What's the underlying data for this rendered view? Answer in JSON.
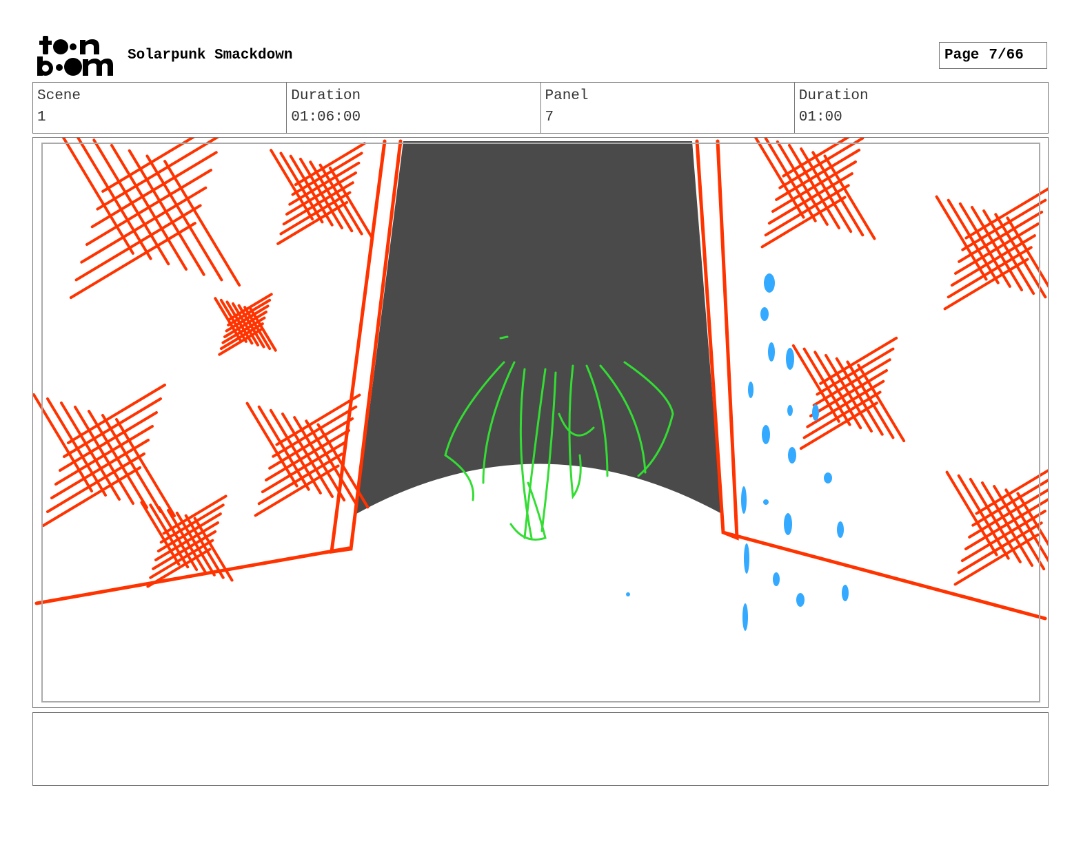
{
  "header": {
    "logo_text": "toon boom",
    "project_title": "Solarpunk Smackdown",
    "page_label": "Page",
    "page_value": "7/66"
  },
  "info": [
    {
      "label": "Scene",
      "value": "1"
    },
    {
      "label": "Duration",
      "value": "01:06:00"
    },
    {
      "label": "Panel",
      "value": "7"
    },
    {
      "label": "Duration",
      "value": "01:00"
    }
  ],
  "notes": {
    "text": ""
  },
  "colors": {
    "red": "#ff3300",
    "dark": "#4a4a4a",
    "green": "#33dd33",
    "blue": "#33aaff"
  }
}
